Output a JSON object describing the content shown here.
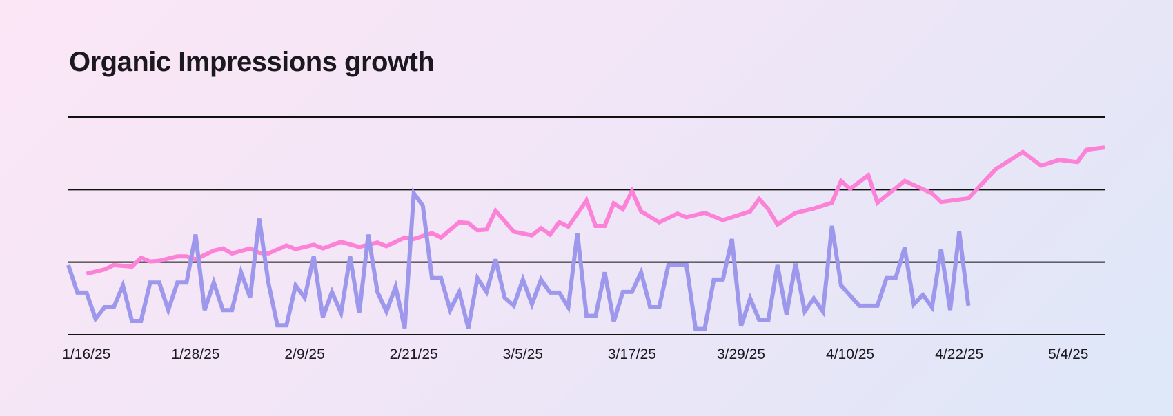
{
  "chart_data": {
    "type": "line",
    "title": "Organic Impressions growth",
    "xlabel": "",
    "ylabel": "",
    "x_range": [
      "1/14/25",
      "5/8/25"
    ],
    "ylim": [
      0,
      3
    ],
    "grid": "horizontal",
    "y_tick_labels": false,
    "x_ticks": [
      "1/16/25",
      "1/28/25",
      "2/9/25",
      "2/21/25",
      "3/5/25",
      "3/17/25",
      "3/29/25",
      "4/10/25",
      "4/22/25",
      "5/4/25"
    ],
    "series": [
      {
        "color": "#fb82d6",
        "points": [
          [
            "1/16/25",
            0.84
          ],
          [
            "1/18/25",
            0.9
          ],
          [
            "1/19/25",
            0.96
          ],
          [
            "1/21/25",
            0.94
          ],
          [
            "1/22/25",
            1.06
          ],
          [
            "1/23/25",
            1.01
          ],
          [
            "1/24/25",
            1.02
          ],
          [
            "1/26/25",
            1.08
          ],
          [
            "1/27/25",
            1.08
          ],
          [
            "1/28/25",
            1.04
          ],
          [
            "1/30/25",
            1.16
          ],
          [
            "1/31/25",
            1.19
          ],
          [
            "2/1/25",
            1.12
          ],
          [
            "2/3/25",
            1.19
          ],
          [
            "2/4/25",
            1.13
          ],
          [
            "2/5/25",
            1.12
          ],
          [
            "2/7/25",
            1.23
          ],
          [
            "2/8/25",
            1.18
          ],
          [
            "2/10/25",
            1.24
          ],
          [
            "2/11/25",
            1.19
          ],
          [
            "2/13/25",
            1.28
          ],
          [
            "2/15/25",
            1.21
          ],
          [
            "2/17/25",
            1.27
          ],
          [
            "2/18/25",
            1.22
          ],
          [
            "2/20/25",
            1.34
          ],
          [
            "2/21/25",
            1.32
          ],
          [
            "2/23/25",
            1.4
          ],
          [
            "2/24/25",
            1.34
          ],
          [
            "2/26/25",
            1.55
          ],
          [
            "2/27/25",
            1.54
          ],
          [
            "2/28/25",
            1.44
          ],
          [
            "3/1/25",
            1.45
          ],
          [
            "3/2/25",
            1.71
          ],
          [
            "3/4/25",
            1.42
          ],
          [
            "3/6/25",
            1.37
          ],
          [
            "3/7/25",
            1.47
          ],
          [
            "3/8/25",
            1.38
          ],
          [
            "3/9/25",
            1.55
          ],
          [
            "3/10/25",
            1.49
          ],
          [
            "3/12/25",
            1.85
          ],
          [
            "3/13/25",
            1.5
          ],
          [
            "3/14/25",
            1.5
          ],
          [
            "3/15/25",
            1.81
          ],
          [
            "3/16/25",
            1.73
          ],
          [
            "3/17/25",
            1.98
          ],
          [
            "3/18/25",
            1.7
          ],
          [
            "3/20/25",
            1.55
          ],
          [
            "3/22/25",
            1.67
          ],
          [
            "3/23/25",
            1.62
          ],
          [
            "3/25/25",
            1.68
          ],
          [
            "3/27/25",
            1.58
          ],
          [
            "3/30/25",
            1.7
          ],
          [
            "3/31/25",
            1.87
          ],
          [
            "4/1/25",
            1.73
          ],
          [
            "4/2/25",
            1.52
          ],
          [
            "4/4/25",
            1.68
          ],
          [
            "4/6/25",
            1.74
          ],
          [
            "4/8/25",
            1.82
          ],
          [
            "4/9/25",
            2.12
          ],
          [
            "4/10/25",
            2.01
          ],
          [
            "4/12/25",
            2.2
          ],
          [
            "4/13/25",
            1.82
          ],
          [
            "4/16/25",
            2.12
          ],
          [
            "4/19/25",
            1.95
          ],
          [
            "4/20/25",
            1.83
          ],
          [
            "4/23/25",
            1.88
          ],
          [
            "4/26/25",
            2.28
          ],
          [
            "4/29/25",
            2.52
          ],
          [
            "5/1/25",
            2.33
          ],
          [
            "5/3/25",
            2.41
          ],
          [
            "5/5/25",
            2.38
          ],
          [
            "5/6/25",
            2.55
          ],
          [
            "5/8/25",
            2.58
          ]
        ]
      },
      {
        "color": "#9d98ec",
        "points": [
          [
            "1/14/25",
            0.96
          ],
          [
            "1/15/25",
            0.58
          ],
          [
            "1/16/25",
            0.58
          ],
          [
            "1/17/25",
            0.22
          ],
          [
            "1/18/25",
            0.38
          ],
          [
            "1/19/25",
            0.38
          ],
          [
            "1/20/25",
            0.68
          ],
          [
            "1/21/25",
            0.19
          ],
          [
            "1/22/25",
            0.19
          ],
          [
            "1/23/25",
            0.72
          ],
          [
            "1/24/25",
            0.72
          ],
          [
            "1/25/25",
            0.34
          ],
          [
            "1/26/25",
            0.72
          ],
          [
            "1/27/25",
            0.72
          ],
          [
            "1/28/25",
            1.38
          ],
          [
            "1/29/25",
            0.34
          ],
          [
            "1/30/25",
            0.72
          ],
          [
            "1/31/25",
            0.34
          ],
          [
            "2/1/25",
            0.34
          ],
          [
            "2/2/25",
            0.86
          ],
          [
            "2/3/25",
            0.51
          ],
          [
            "2/4/25",
            1.6
          ],
          [
            "2/5/25",
            0.72
          ],
          [
            "2/6/25",
            0.13
          ],
          [
            "2/7/25",
            0.13
          ],
          [
            "2/8/25",
            0.68
          ],
          [
            "2/9/25",
            0.51
          ],
          [
            "2/10/25",
            1.08
          ],
          [
            "2/11/25",
            0.24
          ],
          [
            "2/12/25",
            0.59
          ],
          [
            "2/13/25",
            0.3
          ],
          [
            "2/14/25",
            1.08
          ],
          [
            "2/15/25",
            0.3
          ],
          [
            "2/16/25",
            1.38
          ],
          [
            "2/17/25",
            0.59
          ],
          [
            "2/18/25",
            0.32
          ],
          [
            "2/19/25",
            0.66
          ],
          [
            "2/20/25",
            0.09
          ],
          [
            "2/21/25",
            1.95
          ],
          [
            "2/22/25",
            1.78
          ],
          [
            "2/23/25",
            0.78
          ],
          [
            "2/24/25",
            0.78
          ],
          [
            "2/25/25",
            0.34
          ],
          [
            "2/26/25",
            0.59
          ],
          [
            "2/27/25",
            0.09
          ],
          [
            "2/28/25",
            0.78
          ],
          [
            "3/1/25",
            0.59
          ],
          [
            "3/2/25",
            1.04
          ],
          [
            "3/3/25",
            0.51
          ],
          [
            "3/4/25",
            0.4
          ],
          [
            "3/5/25",
            0.76
          ],
          [
            "3/6/25",
            0.42
          ],
          [
            "3/7/25",
            0.76
          ],
          [
            "3/8/25",
            0.58
          ],
          [
            "3/9/25",
            0.58
          ],
          [
            "3/10/25",
            0.38
          ],
          [
            "3/11/25",
            1.4
          ],
          [
            "3/12/25",
            0.26
          ],
          [
            "3/13/25",
            0.26
          ],
          [
            "3/14/25",
            0.86
          ],
          [
            "3/15/25",
            0.18
          ],
          [
            "3/16/25",
            0.59
          ],
          [
            "3/17/25",
            0.59
          ],
          [
            "3/18/25",
            0.86
          ],
          [
            "3/19/25",
            0.38
          ],
          [
            "3/20/25",
            0.38
          ],
          [
            "3/21/25",
            0.96
          ],
          [
            "3/22/25",
            0.96
          ],
          [
            "3/23/25",
            0.96
          ],
          [
            "3/24/25",
            0.08
          ],
          [
            "3/25/25",
            0.08
          ],
          [
            "3/26/25",
            0.76
          ],
          [
            "3/27/25",
            0.76
          ],
          [
            "3/28/25",
            1.32
          ],
          [
            "3/29/25",
            0.12
          ],
          [
            "3/30/25",
            0.5
          ],
          [
            "3/31/25",
            0.2
          ],
          [
            "4/1/25",
            0.2
          ],
          [
            "4/2/25",
            0.96
          ],
          [
            "4/3/25",
            0.28
          ],
          [
            "4/4/25",
            0.98
          ],
          [
            "4/5/25",
            0.32
          ],
          [
            "4/6/25",
            0.5
          ],
          [
            "4/7/25",
            0.32
          ],
          [
            "4/8/25",
            1.5
          ],
          [
            "4/9/25",
            0.68
          ],
          [
            "4/11/25",
            0.4
          ],
          [
            "4/13/25",
            0.4
          ],
          [
            "4/14/25",
            0.78
          ],
          [
            "4/15/25",
            0.78
          ],
          [
            "4/16/25",
            1.2
          ],
          [
            "4/17/25",
            0.42
          ],
          [
            "4/18/25",
            0.55
          ],
          [
            "4/19/25",
            0.38
          ],
          [
            "4/20/25",
            1.18
          ],
          [
            "4/21/25",
            0.34
          ],
          [
            "4/22/25",
            1.42
          ],
          [
            "4/23/25",
            0.4
          ]
        ]
      }
    ]
  }
}
